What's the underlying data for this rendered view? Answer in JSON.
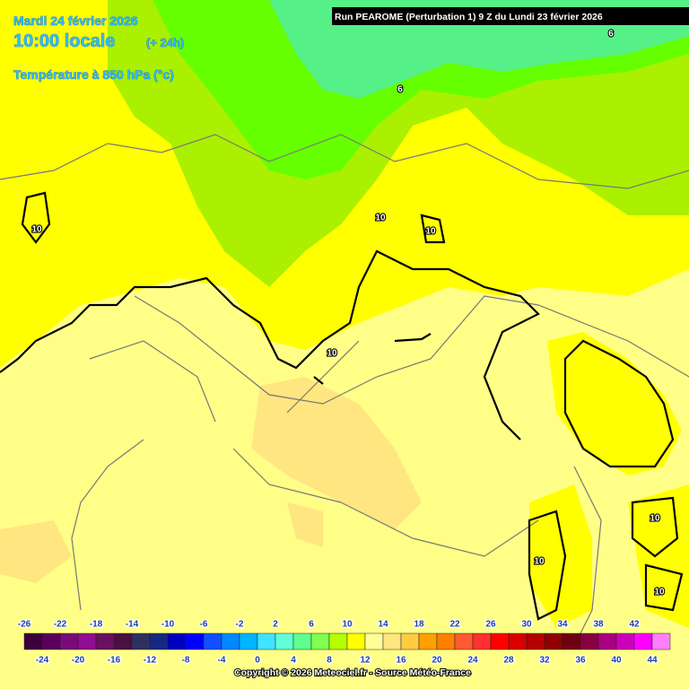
{
  "header": {
    "date": "Mardi 24 février 2026",
    "time": "10:00 locale",
    "lead": "(+ 24h)",
    "variable": "Température à 850 hPa (°c)",
    "run": "Run PEAROME (Perturbation 1) 9 Z du Lundi 23 février 2026"
  },
  "contour_labels": [
    6,
    6,
    10,
    10,
    10,
    10,
    10,
    10,
    10
  ],
  "legend": {
    "ticks": [
      -26,
      -24,
      -22,
      -20,
      -18,
      -16,
      -14,
      -12,
      -10,
      -8,
      -6,
      -4,
      -2,
      0,
      2,
      4,
      6,
      8,
      10,
      12,
      14,
      16,
      18,
      20,
      22,
      24,
      26,
      28,
      30,
      32,
      34,
      36,
      38,
      40,
      42,
      44
    ],
    "colors": [
      "#3c003c",
      "#5a005a",
      "#7a0a7a",
      "#900c90",
      "#6a1060",
      "#4a1040",
      "#303060",
      "#142a80",
      "#0000c0",
      "#0000ff",
      "#1050ff",
      "#0088ff",
      "#00b4ff",
      "#40e4ff",
      "#60ffd8",
      "#60ff90",
      "#80ff50",
      "#b4ff00",
      "#ffff00",
      "#ffff99",
      "#ffe680",
      "#ffcc40",
      "#ffa000",
      "#ff8000",
      "#ff5a30",
      "#ff3030",
      "#ff0000",
      "#d80000",
      "#b40000",
      "#900000",
      "#700010",
      "#880040",
      "#a80080",
      "#cc00bb",
      "#ff00ff",
      "#ff80ff"
    ]
  },
  "footer": {
    "copyright": "Copyright © 2026 Meteociel.fr - Source Météo-France"
  }
}
